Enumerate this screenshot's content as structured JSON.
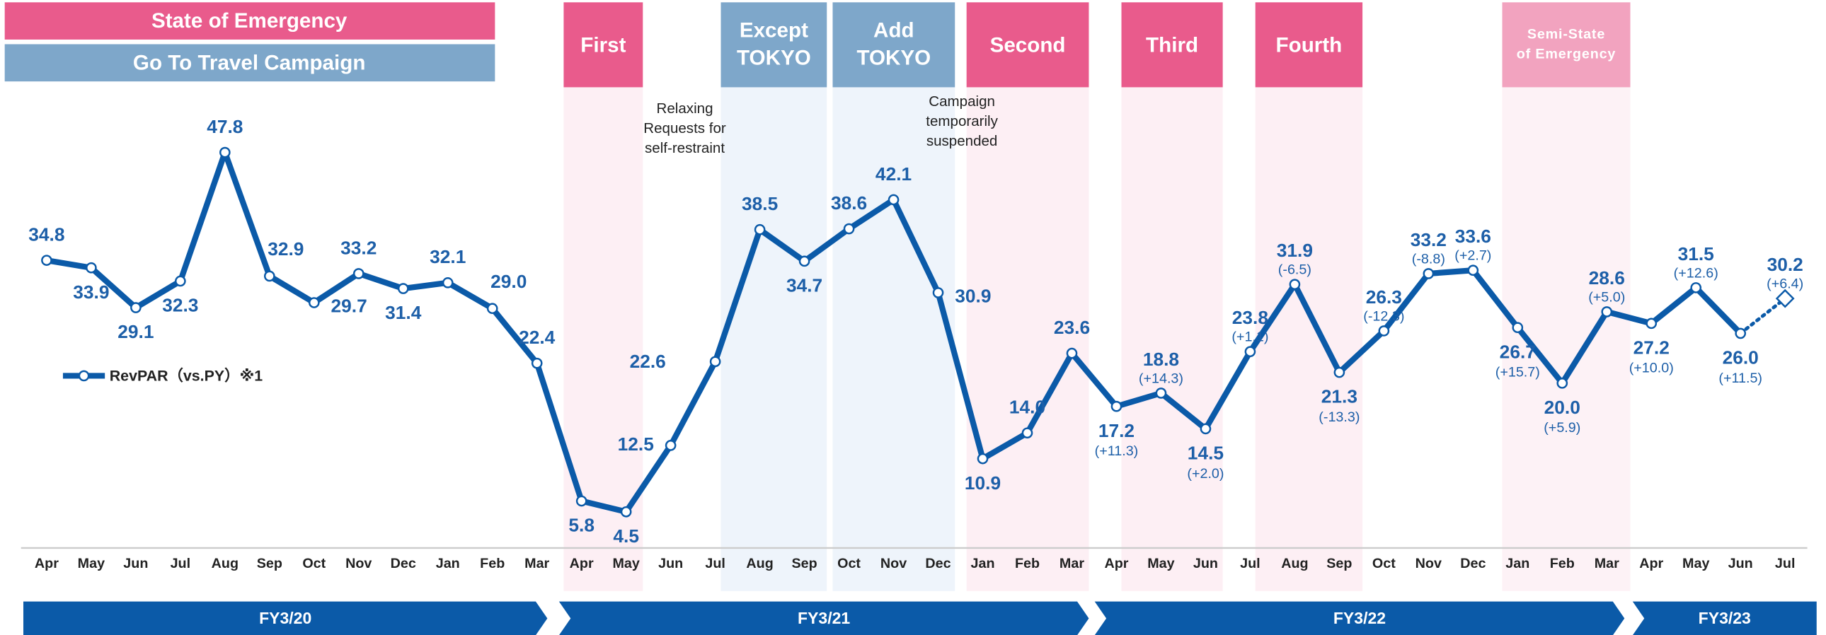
{
  "chart_data": {
    "type": "line",
    "legend_bars": [
      {
        "label": "State of Emergency",
        "color": "#e95b8c"
      },
      {
        "label": "Go To Travel Campaign",
        "color": "#7ea7ca"
      }
    ],
    "periods": [
      {
        "lines": [
          "First"
        ],
        "color": "#e95b8c",
        "band": "#fdeff4"
      },
      {
        "lines": [
          "Except",
          "TOKYO"
        ],
        "color": "#7ea7ca",
        "band": "#eef4fb"
      },
      {
        "lines": [
          "Add",
          "TOKYO"
        ],
        "color": "#7ea7ca",
        "band": "#eef4fb"
      },
      {
        "lines": [
          "Second"
        ],
        "color": "#e95b8c",
        "band": "#fdeff4"
      },
      {
        "lines": [
          "Third"
        ],
        "color": "#e95b8c",
        "band": "#fdeff4"
      },
      {
        "lines": [
          "Fourth"
        ],
        "color": "#e95b8c",
        "band": "#fdeff4"
      },
      {
        "lines": [
          "Semi-State",
          "of Emergency"
        ],
        "color": "#f2a3bf",
        "band": "#fdf2f6"
      }
    ],
    "annotations": [
      [
        "Relaxing",
        "Requests for",
        "self-restraint"
      ],
      [
        "Campaign",
        "temporarily",
        "suspended"
      ]
    ],
    "categories": [
      "Apr",
      "May",
      "Jun",
      "Jul",
      "Aug",
      "Sep",
      "Oct",
      "Nov",
      "Dec",
      "Jan",
      "Feb",
      "Mar",
      "Apr",
      "May",
      "Jun",
      "Jul",
      "Aug",
      "Sep",
      "Oct",
      "Nov",
      "Dec",
      "Jan",
      "Feb",
      "Mar",
      "Apr",
      "May",
      "Jun",
      "Jul",
      "Aug",
      "Sep",
      "Oct",
      "Nov",
      "Dec",
      "Jan",
      "Feb",
      "Mar",
      "Apr",
      "May",
      "Jun",
      "Jul"
    ],
    "fiscal_years": [
      "FY3/20",
      "FY3/21",
      "FY3/22",
      "FY3/23"
    ],
    "ylim": [
      0,
      60
    ],
    "dotted_last_segment": true,
    "series": [
      {
        "name": "RevPAR（vs.PY）※1",
        "color": "#0b5aa8",
        "values": [
          34.8,
          33.9,
          29.1,
          32.3,
          47.8,
          32.9,
          29.7,
          33.2,
          31.4,
          32.1,
          29.0,
          22.4,
          5.8,
          4.5,
          12.5,
          22.6,
          38.5,
          34.7,
          38.6,
          42.1,
          30.9,
          10.9,
          14.0,
          23.6,
          17.2,
          18.8,
          14.5,
          23.8,
          31.9,
          21.3,
          26.3,
          33.2,
          33.6,
          26.7,
          20.0,
          28.6,
          27.2,
          31.5,
          26.0,
          30.2
        ],
        "value_labels": [
          "34.8",
          "33.9",
          "29.1",
          "32.3",
          "47.8",
          "32.9",
          "29.7",
          "33.2",
          "31.4",
          "32.1",
          "29.0",
          "22.4",
          "5.8",
          "4.5",
          "12.5",
          "22.6",
          "38.5",
          "34.7",
          "38.6",
          "42.1",
          "30.9",
          "10.9",
          "14.0",
          "23.6",
          "17.2",
          "18.8",
          "14.5",
          "23.8",
          "31.9",
          "21.3",
          "26.3",
          "33.2",
          "33.6",
          "26.7",
          "20.0",
          "28.6",
          "27.2",
          "31.5",
          "26.0",
          "30.2"
        ],
        "vs_py": [
          null,
          null,
          null,
          null,
          null,
          null,
          null,
          null,
          null,
          null,
          null,
          null,
          null,
          null,
          null,
          null,
          null,
          null,
          null,
          null,
          null,
          null,
          null,
          null,
          "(+11.3)",
          "(+14.3)",
          "(+2.0)",
          "(+1.1)",
          "(-6.5)",
          "(-13.3)",
          "(-12.3)",
          "(-8.8)",
          "(+2.7)",
          "(+15.7)",
          "(+5.9)",
          "(+5.0)",
          "(+10.0)",
          "(+12.6)",
          "(+11.5)",
          "(+6.4)"
        ]
      }
    ]
  }
}
